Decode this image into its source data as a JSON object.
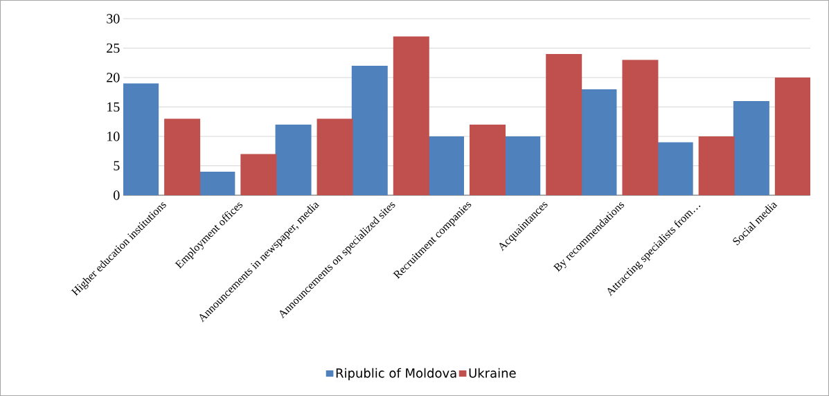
{
  "chart_data": {
    "type": "bar",
    "categories": [
      "Higher education institutions",
      "Employment offices",
      "Announcements in newspaper, media",
      "Announcements on specialized sites",
      "Recruitment companies",
      "Acquaintances",
      "By recommendations",
      "Attracting specialists from…",
      "Social media"
    ],
    "series": [
      {
        "name": "Ripublic of Moldova",
        "color": "#4f81bd",
        "values": [
          19,
          4,
          12,
          22,
          10,
          10,
          18,
          9,
          16
        ]
      },
      {
        "name": "Ukraine",
        "color": "#c0504d",
        "values": [
          13,
          7,
          13,
          27,
          12,
          24,
          23,
          10,
          20
        ]
      }
    ],
    "ylim": [
      0,
      30
    ],
    "yticks": [
      0,
      5,
      10,
      15,
      20,
      25,
      30
    ],
    "grid": "y",
    "legend": "bottom"
  }
}
